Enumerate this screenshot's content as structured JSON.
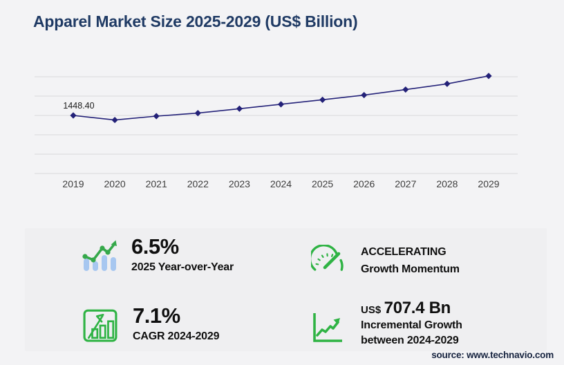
{
  "page": {
    "title": "Apparel Market Size 2025-2029 (US$ Billion)",
    "source": "source: www.technavio.com"
  },
  "chart_data": {
    "type": "line",
    "title": "Apparel Market Size 2025-2029 (US$ Billion)",
    "x_labels": [
      "2019",
      "2020",
      "2021",
      "2022",
      "2023",
      "2024",
      "2025",
      "2026",
      "2027",
      "2028",
      "2029"
    ],
    "values": [
      1448.4,
      1335,
      1431,
      1507,
      1616,
      1727,
      1839,
      1956,
      2094,
      2237,
      2434
    ],
    "annotations": [
      {
        "x": "2019",
        "text": "1448.40"
      }
    ],
    "ylabel": "",
    "xlabel": "",
    "ylim": [
      0,
      2500
    ],
    "gridline_step": 500,
    "grid": "horizontal",
    "legend": false,
    "marker": "diamond",
    "line_color": "#232178"
  },
  "stats": {
    "yoy": {
      "value": "6.5%",
      "label": "2025 Year-over-Year"
    },
    "cagr": {
      "value": "7.1%",
      "label": "CAGR 2024-2029"
    },
    "momentum": {
      "line1": "ACCELERATING",
      "line2": "Growth Momentum"
    },
    "incremental": {
      "currency": "US$",
      "amount": "707.4 Bn",
      "line1": "Incremental Growth",
      "line2": "between 2024-2029"
    }
  },
  "colors": {
    "background": "#f3f3f5",
    "panel": "#efeff1",
    "title": "#1f3a64",
    "line": "#232178",
    "gridline": "#d9d9db",
    "axis_label": "#3c3c3c",
    "green": "#2fb344",
    "light_blue": "#a7c7f0",
    "text": "#0f0f0f",
    "source": "#16233f"
  }
}
